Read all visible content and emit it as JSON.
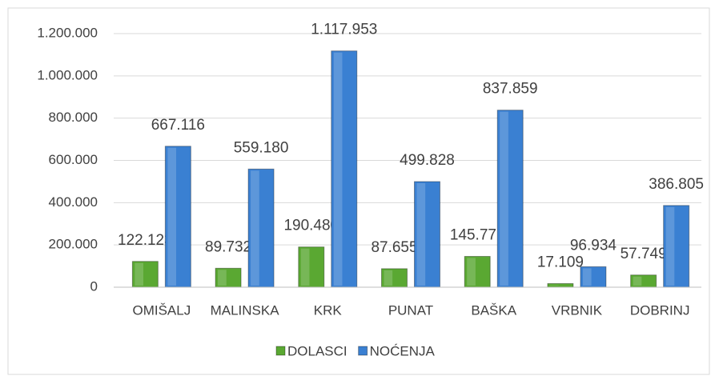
{
  "chart_data": {
    "type": "bar",
    "categories": [
      "OMIŠALJ",
      "MALINSKA",
      "KRK",
      "PUNAT",
      "BAŠKA",
      "VRBNIK",
      "DOBRINJ"
    ],
    "series": [
      {
        "name": "DOLASCI",
        "color": "#5aa832",
        "values": [
          122123,
          89732,
          190480,
          87655,
          145771,
          17109,
          57749
        ],
        "value_labels": [
          "122.123",
          "89.732",
          "190.480",
          "87.655",
          "145.771",
          "17.109",
          "57.749"
        ]
      },
      {
        "name": "NOĆENJA",
        "color": "#3a80d2",
        "values": [
          667116,
          559180,
          1117953,
          499828,
          837859,
          96934,
          386805
        ],
        "value_labels": [
          "667.116",
          "559.180",
          "1.117.953",
          "499.828",
          "837.859",
          "96.934",
          "386.805"
        ]
      }
    ],
    "ylim": [
      0,
      1200000
    ],
    "yticks": [
      0,
      {
        "value": 200000,
        "label": "200.000"
      },
      {
        "value": 400000,
        "label": "400.000"
      },
      {
        "value": 600000,
        "label": "600.000"
      },
      {
        "value": 800000,
        "label": "800.000"
      },
      {
        "value": 1000000,
        "label": "1.000.000"
      },
      {
        "value": 1200000,
        "label": "1.200.000"
      }
    ],
    "grid": true,
    "legend": "bottom"
  }
}
